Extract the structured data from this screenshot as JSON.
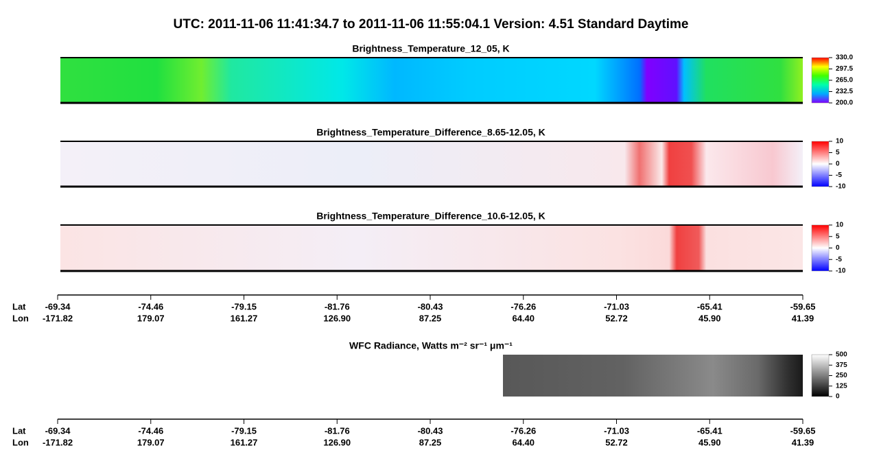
{
  "title": "UTC:  2011-11-06   11:41:34.7  to  2011-11-06   11:55:04.1    Version: 4.51  Standard Daytime",
  "panels": [
    {
      "title": "Brightness_Temperature_12_05, K",
      "range": [
        200,
        330
      ],
      "ticks": [
        {
          "value": 330,
          "label": "330.0"
        },
        {
          "value": 297.5,
          "label": "297.5"
        },
        {
          "value": 265,
          "label": "265.0"
        },
        {
          "value": 232.5,
          "label": "232.5"
        },
        {
          "value": 200,
          "label": "200.0"
        }
      ],
      "colormap": [
        "#8000ff",
        "#00aaff",
        "#00ffaa",
        "#40ff00",
        "#ffff00",
        "#ff0000"
      ]
    },
    {
      "title": "Brightness_Temperature_Difference_8.65-12.05, K",
      "range": [
        -10,
        10
      ],
      "ticks": [
        10,
        5,
        0,
        -5,
        -10
      ],
      "colormap": [
        "#0000ff",
        "#ffffff",
        "#ff0000"
      ]
    },
    {
      "title": "Brightness_Temperature_Difference_10.6-12.05, K",
      "range": [
        -10,
        10
      ],
      "ticks": [
        10,
        5,
        0,
        -5,
        -10
      ],
      "colormap": [
        "#0000ff",
        "#ffffff",
        "#ff0000"
      ]
    },
    {
      "title": "WFC Radiance, Watts m⁻² sr⁻¹ μm⁻¹",
      "range": [
        0,
        500
      ],
      "ticks": [
        500,
        375,
        250,
        125,
        0
      ],
      "colormap": [
        "#000000",
        "#ffffff"
      ]
    }
  ],
  "axis_labels": [
    "Lat",
    "Lon"
  ],
  "lat": [
    "-69.34",
    "-74.46",
    "-79.15",
    "-81.76",
    "-80.43",
    "-76.26",
    "-71.03",
    "-65.41",
    "-59.65"
  ],
  "lon": [
    "-171.82",
    "179.07",
    "161.27",
    "126.90",
    "87.25",
    "64.40",
    "52.72",
    "45.90",
    "41.39"
  ]
}
